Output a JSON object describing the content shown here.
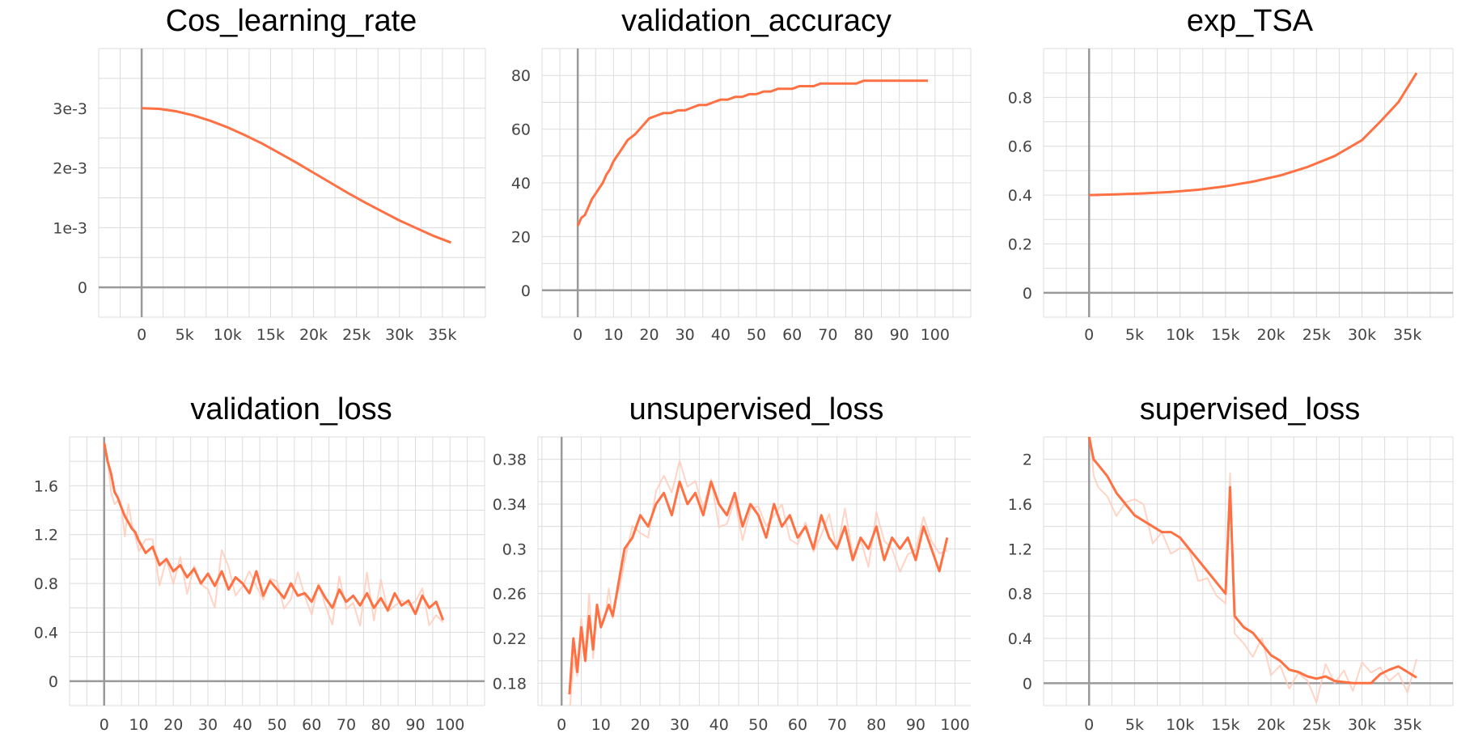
{
  "figure": {
    "accent_color": "#ff7043",
    "raw_color": "#ffc9b6",
    "grid": true
  },
  "chart_data": [
    {
      "type": "line",
      "title": "Cos_learning_rate",
      "xticks": [
        "0",
        "5k",
        "10k",
        "15k",
        "20k",
        "25k",
        "30k",
        "35k"
      ],
      "xtick_values": [
        0,
        5000,
        10000,
        15000,
        20000,
        25000,
        30000,
        35000
      ],
      "yticks": [
        "0",
        "1e-3",
        "2e-3",
        "3e-3"
      ],
      "ytick_values": [
        0,
        0.001,
        0.002,
        0.003
      ],
      "xlim": [
        -5000,
        40000
      ],
      "ylim": [
        -0.0005,
        0.004
      ],
      "series": [
        {
          "x": [
            0,
            2000,
            4000,
            6000,
            8000,
            10000,
            12000,
            14000,
            16000,
            18000,
            20000,
            22000,
            24000,
            26000,
            28000,
            30000,
            32000,
            34000,
            36000
          ],
          "y": [
            0.003,
            0.00299,
            0.00295,
            0.00288,
            0.00279,
            0.00268,
            0.00255,
            0.00241,
            0.00225,
            0.00209,
            0.00192,
            0.00175,
            0.00158,
            0.00142,
            0.00127,
            0.00112,
            0.00099,
            0.00086,
            0.00075
          ]
        }
      ]
    },
    {
      "type": "line",
      "title": "validation_accuracy",
      "xticks": [
        "0",
        "10",
        "20",
        "30",
        "40",
        "50",
        "60",
        "70",
        "80",
        "90",
        "100"
      ],
      "xtick_values": [
        0,
        10,
        20,
        30,
        40,
        50,
        60,
        70,
        80,
        90,
        100
      ],
      "yticks": [
        "0",
        "20",
        "40",
        "60",
        "80"
      ],
      "ytick_values": [
        0,
        20,
        40,
        60,
        80
      ],
      "xlim": [
        -10,
        110
      ],
      "ylim": [
        -10,
        90
      ],
      "series": [
        {
          "x": [
            0,
            1,
            2,
            3,
            4,
            5,
            6,
            7,
            8,
            9,
            10,
            12,
            14,
            16,
            18,
            20,
            22,
            24,
            26,
            28,
            30,
            32,
            34,
            36,
            38,
            40,
            42,
            44,
            46,
            48,
            50,
            52,
            54,
            56,
            58,
            60,
            62,
            64,
            66,
            68,
            70,
            72,
            74,
            76,
            78,
            80,
            82,
            84,
            86,
            88,
            90,
            92,
            94,
            96,
            98
          ],
          "y": [
            24,
            27,
            28,
            31,
            34,
            36,
            38,
            40,
            43,
            45,
            48,
            52,
            56,
            58,
            61,
            64,
            65,
            66,
            66,
            67,
            67,
            68,
            69,
            69,
            70,
            71,
            71,
            72,
            72,
            73,
            73,
            74,
            74,
            75,
            75,
            75,
            76,
            76,
            76,
            77,
            77,
            77,
            77,
            77,
            77,
            78,
            78,
            78,
            78,
            78,
            78,
            78,
            78,
            78,
            78
          ]
        }
      ]
    },
    {
      "type": "line",
      "title": "exp_TSA",
      "xticks": [
        "0",
        "5k",
        "10k",
        "15k",
        "20k",
        "25k",
        "30k",
        "35k"
      ],
      "xtick_values": [
        0,
        5000,
        10000,
        15000,
        20000,
        25000,
        30000,
        35000
      ],
      "yticks": [
        "0",
        "0.2",
        "0.4",
        "0.6",
        "0.8"
      ],
      "ytick_values": [
        0,
        0.2,
        0.4,
        0.6,
        0.8
      ],
      "xlim": [
        -5000,
        40000
      ],
      "ylim": [
        -0.1,
        1.0
      ],
      "series": [
        {
          "x": [
            0,
            3000,
            6000,
            9000,
            12000,
            15000,
            18000,
            21000,
            24000,
            27000,
            30000,
            32000,
            34000,
            36000
          ],
          "y": [
            0.4,
            0.403,
            0.407,
            0.413,
            0.422,
            0.436,
            0.455,
            0.48,
            0.515,
            0.56,
            0.625,
            0.7,
            0.78,
            0.9
          ]
        }
      ]
    },
    {
      "type": "line",
      "title": "validation_loss",
      "xticks": [
        "0",
        "10",
        "20",
        "30",
        "40",
        "50",
        "60",
        "70",
        "80",
        "90",
        "100"
      ],
      "xtick_values": [
        0,
        10,
        20,
        30,
        40,
        50,
        60,
        70,
        80,
        90,
        100
      ],
      "yticks": [
        "0",
        "0.4",
        "0.8",
        "1.2",
        "1.6"
      ],
      "ytick_values": [
        0,
        0.4,
        0.8,
        1.2,
        1.6
      ],
      "xlim": [
        -10,
        110
      ],
      "ylim": [
        -0.2,
        2.0
      ],
      "series": [
        {
          "x": [
            0,
            1,
            2,
            3,
            4,
            5,
            6,
            7,
            8,
            9,
            10,
            12,
            14,
            16,
            18,
            20,
            22,
            24,
            26,
            28,
            30,
            32,
            34,
            36,
            38,
            40,
            42,
            44,
            46,
            48,
            50,
            52,
            54,
            56,
            58,
            60,
            62,
            64,
            66,
            68,
            70,
            72,
            74,
            76,
            78,
            80,
            82,
            84,
            86,
            88,
            90,
            92,
            94,
            96,
            98
          ],
          "y": [
            1.95,
            1.8,
            1.7,
            1.55,
            1.5,
            1.42,
            1.35,
            1.3,
            1.25,
            1.22,
            1.15,
            1.05,
            1.1,
            0.95,
            1.0,
            0.9,
            0.95,
            0.85,
            0.92,
            0.8,
            0.88,
            0.78,
            0.9,
            0.75,
            0.85,
            0.8,
            0.72,
            0.9,
            0.7,
            0.82,
            0.75,
            0.68,
            0.8,
            0.7,
            0.72,
            0.65,
            0.78,
            0.68,
            0.6,
            0.75,
            0.65,
            0.7,
            0.62,
            0.72,
            0.6,
            0.68,
            0.58,
            0.72,
            0.62,
            0.66,
            0.55,
            0.7,
            0.6,
            0.65,
            0.5
          ]
        }
      ]
    },
    {
      "type": "line",
      "title": "unsupervised_loss",
      "xticks": [
        "0",
        "10",
        "20",
        "30",
        "40",
        "50",
        "60",
        "70",
        "80",
        "90",
        "100"
      ],
      "xtick_values": [
        0,
        10,
        20,
        30,
        40,
        50,
        60,
        70,
        80,
        90,
        100
      ],
      "yticks": [
        "0.18",
        "0.22",
        "0.26",
        "0.3",
        "0.34",
        "0.38"
      ],
      "ytick_values": [
        0.18,
        0.22,
        0.26,
        0.3,
        0.34,
        0.38
      ],
      "xlim": [
        -6,
        104
      ],
      "ylim": [
        0.16,
        0.4
      ],
      "series": [
        {
          "x": [
            2,
            3,
            4,
            5,
            6,
            7,
            8,
            9,
            10,
            11,
            12,
            13,
            14,
            15,
            16,
            18,
            20,
            22,
            24,
            26,
            28,
            30,
            32,
            34,
            36,
            38,
            40,
            42,
            44,
            46,
            48,
            50,
            52,
            54,
            56,
            58,
            60,
            62,
            64,
            66,
            68,
            70,
            72,
            74,
            76,
            78,
            80,
            82,
            84,
            86,
            88,
            90,
            92,
            94,
            96,
            98
          ],
          "y": [
            0.17,
            0.22,
            0.19,
            0.23,
            0.2,
            0.24,
            0.21,
            0.25,
            0.23,
            0.24,
            0.25,
            0.24,
            0.26,
            0.28,
            0.3,
            0.31,
            0.33,
            0.32,
            0.34,
            0.35,
            0.33,
            0.36,
            0.34,
            0.35,
            0.33,
            0.36,
            0.34,
            0.33,
            0.35,
            0.32,
            0.34,
            0.33,
            0.31,
            0.34,
            0.32,
            0.33,
            0.31,
            0.32,
            0.3,
            0.33,
            0.31,
            0.3,
            0.32,
            0.29,
            0.31,
            0.3,
            0.32,
            0.29,
            0.31,
            0.3,
            0.31,
            0.29,
            0.32,
            0.3,
            0.28,
            0.31
          ]
        }
      ]
    },
    {
      "type": "line",
      "title": "supervised_loss",
      "xticks": [
        "0",
        "5k",
        "10k",
        "15k",
        "20k",
        "25k",
        "30k",
        "35k"
      ],
      "xtick_values": [
        0,
        5000,
        10000,
        15000,
        20000,
        25000,
        30000,
        35000
      ],
      "yticks": [
        "0",
        "0.4",
        "0.8",
        "1.2",
        "1.6",
        "2"
      ],
      "ytick_values": [
        0,
        0.4,
        0.8,
        1.2,
        1.6,
        2.0
      ],
      "xlim": [
        -5000,
        40000
      ],
      "ylim": [
        -0.2,
        2.2
      ],
      "series": [
        {
          "x": [
            0,
            500,
            1000,
            2000,
            3000,
            4000,
            5000,
            6000,
            7000,
            8000,
            9000,
            10000,
            11000,
            12000,
            13000,
            14000,
            15000,
            15500,
            16000,
            17000,
            18000,
            19000,
            20000,
            21000,
            22000,
            23000,
            24000,
            25000,
            26000,
            27000,
            28000,
            29000,
            30000,
            31000,
            32000,
            33000,
            34000,
            35000,
            36000
          ],
          "y": [
            2.2,
            2.0,
            1.95,
            1.85,
            1.7,
            1.6,
            1.5,
            1.45,
            1.4,
            1.35,
            1.35,
            1.3,
            1.2,
            1.1,
            1.0,
            0.9,
            0.8,
            1.75,
            0.6,
            0.5,
            0.45,
            0.35,
            0.25,
            0.2,
            0.12,
            0.1,
            0.06,
            0.04,
            0.06,
            0.02,
            0.01,
            0.0,
            0.0,
            0.0,
            0.08,
            0.12,
            0.15,
            0.1,
            0.05
          ]
        }
      ]
    }
  ]
}
